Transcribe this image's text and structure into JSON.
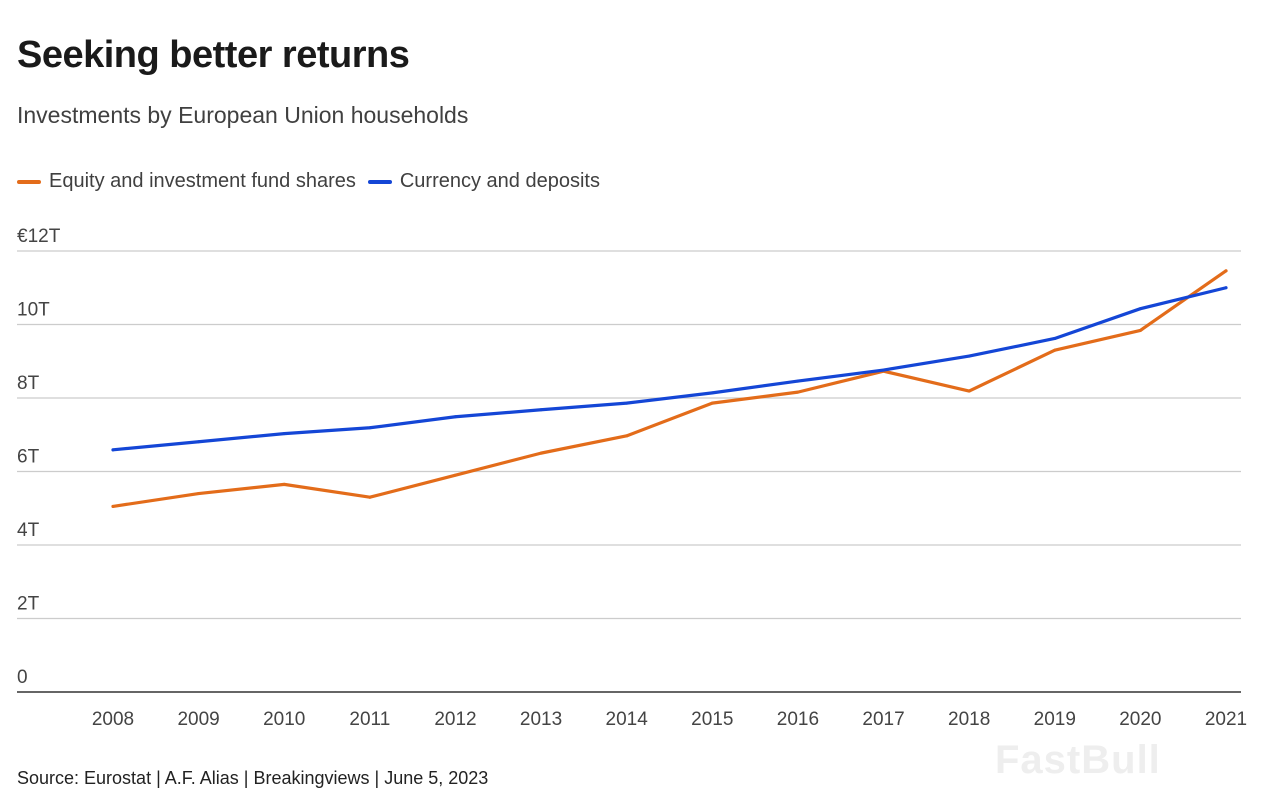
{
  "title": "Seeking better returns",
  "subtitle": "Investments by European Union households",
  "source": "Source: Eurostat | A.F. Alias | Breakingviews | June 5, 2023",
  "watermark": "FastBull",
  "chart_data": {
    "type": "line",
    "title": "Seeking better returns",
    "subtitle": "Investments by European Union households",
    "legend_position": "top-left",
    "grid": true,
    "x": [
      2008,
      2009,
      2010,
      2011,
      2012,
      2013,
      2014,
      2015,
      2016,
      2017,
      2018,
      2019,
      2020,
      2021
    ],
    "ylim": [
      0,
      12
    ],
    "yticks": [
      0,
      2,
      4,
      6,
      8,
      10,
      12
    ],
    "ytick_labels": [
      "0",
      "2T",
      "4T",
      "6T",
      "8T",
      "10T",
      "€12T"
    ],
    "series": [
      {
        "name": "Equity and investment fund shares",
        "color": "#e36c1a",
        "values": [
          5.05,
          5.4,
          5.65,
          5.3,
          5.9,
          6.5,
          6.97,
          7.86,
          8.16,
          8.73,
          8.19,
          9.3,
          9.84,
          11.46
        ]
      },
      {
        "name": "Currency and deposits",
        "color": "#1446d6",
        "values": [
          6.59,
          6.81,
          7.03,
          7.19,
          7.49,
          7.68,
          7.86,
          8.14,
          8.46,
          8.76,
          9.14,
          9.62,
          10.43,
          11.0
        ]
      }
    ]
  }
}
